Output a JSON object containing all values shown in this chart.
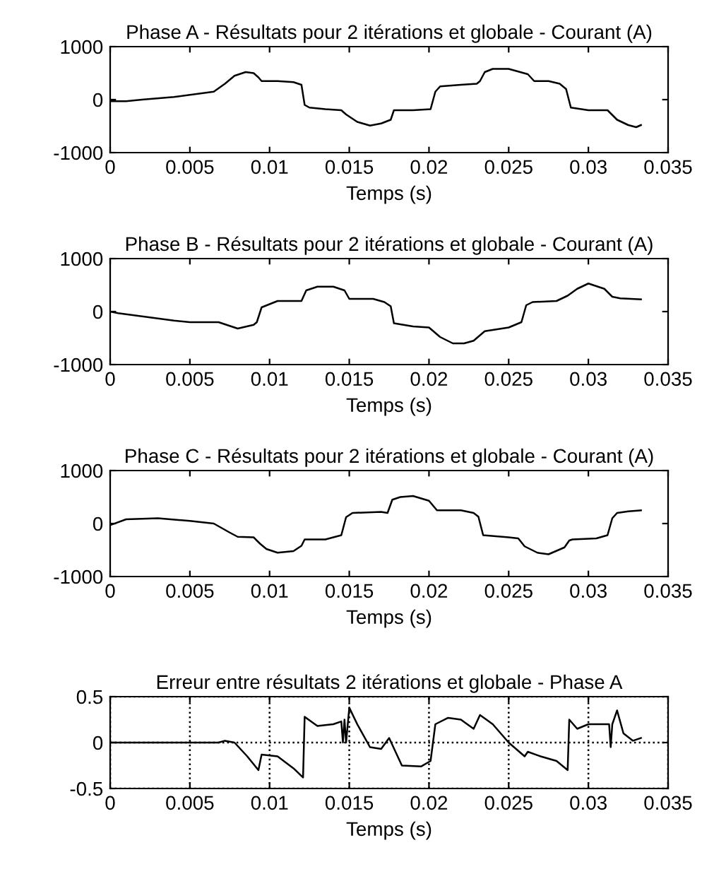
{
  "chart_data": [
    {
      "type": "line",
      "title": "Phase A - Résultats pour 2 itérations et globale - Courant (A)",
      "xlabel": "Temps (s)",
      "xlim": [
        0,
        0.035
      ],
      "ylim": [
        -1000,
        1000
      ],
      "xticks": [
        0,
        0.005,
        0.01,
        0.015,
        0.02,
        0.025,
        0.03,
        0.035
      ],
      "yticks": [
        -1000,
        0,
        1000
      ],
      "series": [
        {
          "color": "#000000",
          "x": [
            0,
            0.001,
            0.002,
            0.004,
            0.0065,
            0.0072,
            0.0078,
            0.0085,
            0.009,
            0.0093,
            0.0095,
            0.0105,
            0.0115,
            0.012,
            0.0122,
            0.0125,
            0.0135,
            0.0145,
            0.0148,
            0.0155,
            0.0163,
            0.017,
            0.0176,
            0.0178,
            0.019,
            0.0201,
            0.0204,
            0.0207,
            0.022,
            0.023,
            0.0232,
            0.0235,
            0.024,
            0.025,
            0.0262,
            0.0266,
            0.0275,
            0.0282,
            0.0286,
            0.0289,
            0.03,
            0.0312,
            0.0318,
            0.0325,
            0.033,
            0.0333
          ],
          "values": [
            -30,
            -30,
            0,
            50,
            150,
            300,
            450,
            520,
            500,
            420,
            350,
            350,
            330,
            280,
            -100,
            -150,
            -180,
            -200,
            -280,
            -420,
            -490,
            -450,
            -380,
            -200,
            -200,
            -180,
            150,
            250,
            280,
            300,
            350,
            520,
            580,
            580,
            480,
            350,
            350,
            300,
            200,
            -150,
            -200,
            -200,
            -380,
            -480,
            -520,
            -480
          ]
        }
      ]
    },
    {
      "type": "line",
      "title": "Phase B - Résultats pour 2 itérations et globale - Courant (A)",
      "xlabel": "Temps (s)",
      "xlim": [
        0,
        0.035
      ],
      "ylim": [
        -1000,
        1000
      ],
      "xticks": [
        0,
        0.005,
        0.01,
        0.015,
        0.02,
        0.025,
        0.03,
        0.035
      ],
      "yticks": [
        -1000,
        0,
        1000
      ],
      "series": [
        {
          "color": "#000000",
          "x": [
            0,
            0.0005,
            0.002,
            0.004,
            0.005,
            0.0068,
            0.0075,
            0.008,
            0.009,
            0.0092,
            0.0095,
            0.0105,
            0.012,
            0.0123,
            0.013,
            0.014,
            0.0147,
            0.015,
            0.0165,
            0.0172,
            0.0176,
            0.0178,
            0.019,
            0.02,
            0.0207,
            0.0215,
            0.0222,
            0.0228,
            0.0235,
            0.025,
            0.0258,
            0.0261,
            0.0265,
            0.028,
            0.0287,
            0.0293,
            0.03,
            0.0305,
            0.031,
            0.0315,
            0.032,
            0.0333
          ],
          "values": [
            0,
            -30,
            -90,
            -170,
            -200,
            -200,
            -270,
            -320,
            -250,
            -200,
            80,
            200,
            200,
            400,
            470,
            470,
            400,
            240,
            240,
            180,
            100,
            -220,
            -280,
            -300,
            -480,
            -600,
            -600,
            -550,
            -370,
            -300,
            -200,
            120,
            180,
            200,
            300,
            430,
            530,
            480,
            430,
            280,
            250,
            230
          ]
        }
      ]
    },
    {
      "type": "line",
      "title": "Phase C - Résultats pour 2 itérations et globale - Courant (A)",
      "xlabel": "Temps (s)",
      "xlim": [
        0,
        0.035
      ],
      "ylim": [
        -1000,
        1000
      ],
      "xticks": [
        0,
        0.005,
        0.01,
        0.015,
        0.02,
        0.025,
        0.03,
        0.035
      ],
      "yticks": [
        -1000,
        0,
        1000
      ],
      "series": [
        {
          "color": "#000000",
          "x": [
            0,
            0.001,
            0.003,
            0.005,
            0.0065,
            0.0075,
            0.008,
            0.009,
            0.0094,
            0.0098,
            0.0105,
            0.0115,
            0.012,
            0.0122,
            0.0135,
            0.0145,
            0.0148,
            0.0152,
            0.017,
            0.0174,
            0.0177,
            0.0182,
            0.019,
            0.02,
            0.0205,
            0.022,
            0.0228,
            0.0231,
            0.0234,
            0.025,
            0.0256,
            0.026,
            0.0268,
            0.0275,
            0.0285,
            0.0288,
            0.029,
            0.0305,
            0.0312,
            0.0315,
            0.0318,
            0.0325,
            0.0333
          ],
          "values": [
            -30,
            80,
            100,
            50,
            0,
            -170,
            -250,
            -260,
            -380,
            -480,
            -550,
            -520,
            -420,
            -300,
            -300,
            -220,
            120,
            200,
            220,
            200,
            450,
            500,
            520,
            430,
            250,
            250,
            200,
            130,
            -220,
            -260,
            -280,
            -430,
            -550,
            -580,
            -450,
            -320,
            -300,
            -280,
            -220,
            100,
            200,
            230,
            250
          ]
        }
      ]
    },
    {
      "type": "line",
      "title": "Erreur entre résultats 2 itérations et globale - Phase A",
      "xlabel": "Temps (s)",
      "xlim": [
        0,
        0.035
      ],
      "ylim": [
        -0.5,
        0.5
      ],
      "xticks": [
        0,
        0.005,
        0.01,
        0.015,
        0.02,
        0.025,
        0.03,
        0.035
      ],
      "yticks": [
        -0.5,
        0,
        0.5
      ],
      "grid": true,
      "series": [
        {
          "color": "#000000",
          "x": [
            0,
            0.0068,
            0.0072,
            0.0078,
            0.0086,
            0.0093,
            0.0095,
            0.0105,
            0.0115,
            0.0121,
            0.0122,
            0.013,
            0.014,
            0.0145,
            0.0146,
            0.0147,
            0.0148,
            0.015,
            0.0155,
            0.0163,
            0.017,
            0.0175,
            0.0183,
            0.0195,
            0.0201,
            0.0204,
            0.0212,
            0.022,
            0.0228,
            0.0232,
            0.024,
            0.025,
            0.026,
            0.0262,
            0.027,
            0.028,
            0.0287,
            0.0288,
            0.0293,
            0.03,
            0.0313,
            0.0314,
            0.0315,
            0.0318,
            0.0322,
            0.0328,
            0.0333
          ],
          "values": [
            0,
            0,
            0.02,
            0,
            -0.15,
            -0.3,
            -0.13,
            -0.15,
            -0.28,
            -0.38,
            0.28,
            0.18,
            0.2,
            0.23,
            0.0,
            0.25,
            0.0,
            0.38,
            0.2,
            -0.05,
            -0.07,
            0.05,
            -0.25,
            -0.26,
            -0.2,
            0.2,
            0.27,
            0.25,
            0.15,
            0.3,
            0.2,
            0.0,
            -0.15,
            -0.1,
            -0.15,
            -0.2,
            -0.3,
            0.25,
            0.15,
            0.2,
            0.2,
            -0.05,
            0.2,
            0.35,
            0.1,
            0.02,
            0.05
          ]
        }
      ]
    }
  ]
}
